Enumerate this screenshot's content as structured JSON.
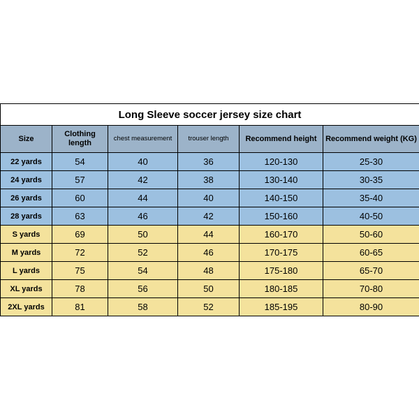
{
  "title": "Long Sleeve soccer jersey size chart",
  "columns": [
    "Size",
    "Clothing length",
    "chest measurement",
    "trouser length",
    "Recommend height",
    "Recommend weight (KG)"
  ],
  "groups": [
    {
      "cls": "kid",
      "rows": [
        {
          "size": "22 yards",
          "len": "54",
          "chest": "40",
          "trouser": "36",
          "height": "120-130",
          "weight": "25-30"
        },
        {
          "size": "24 yards",
          "len": "57",
          "chest": "42",
          "trouser": "38",
          "height": "130-140",
          "weight": "30-35"
        },
        {
          "size": "26 yards",
          "len": "60",
          "chest": "44",
          "trouser": "40",
          "height": "140-150",
          "weight": "35-40"
        },
        {
          "size": "28 yards",
          "len": "63",
          "chest": "46",
          "trouser": "42",
          "height": "150-160",
          "weight": "40-50"
        }
      ]
    },
    {
      "cls": "ad",
      "rows": [
        {
          "size": "S yards",
          "len": "69",
          "chest": "50",
          "trouser": "44",
          "height": "160-170",
          "weight": "50-60"
        },
        {
          "size": "M yards",
          "len": "72",
          "chest": "52",
          "trouser": "46",
          "height": "170-175",
          "weight": "60-65"
        },
        {
          "size": "L yards",
          "len": "75",
          "chest": "54",
          "trouser": "48",
          "height": "175-180",
          "weight": "65-70"
        },
        {
          "size": "XL yards",
          "len": "78",
          "chest": "56",
          "trouser": "50",
          "height": "180-185",
          "weight": "70-80"
        },
        {
          "size": "2XL yards",
          "len": "81",
          "chest": "58",
          "trouser": "52",
          "height": "185-195",
          "weight": "80-90"
        }
      ]
    }
  ],
  "colors": {
    "header_bg": "#9cb3c9",
    "kid_bg": "#9cc0e0",
    "adult_bg": "#f4e29c",
    "border": "#000000",
    "page_bg": "#ffffff"
  }
}
